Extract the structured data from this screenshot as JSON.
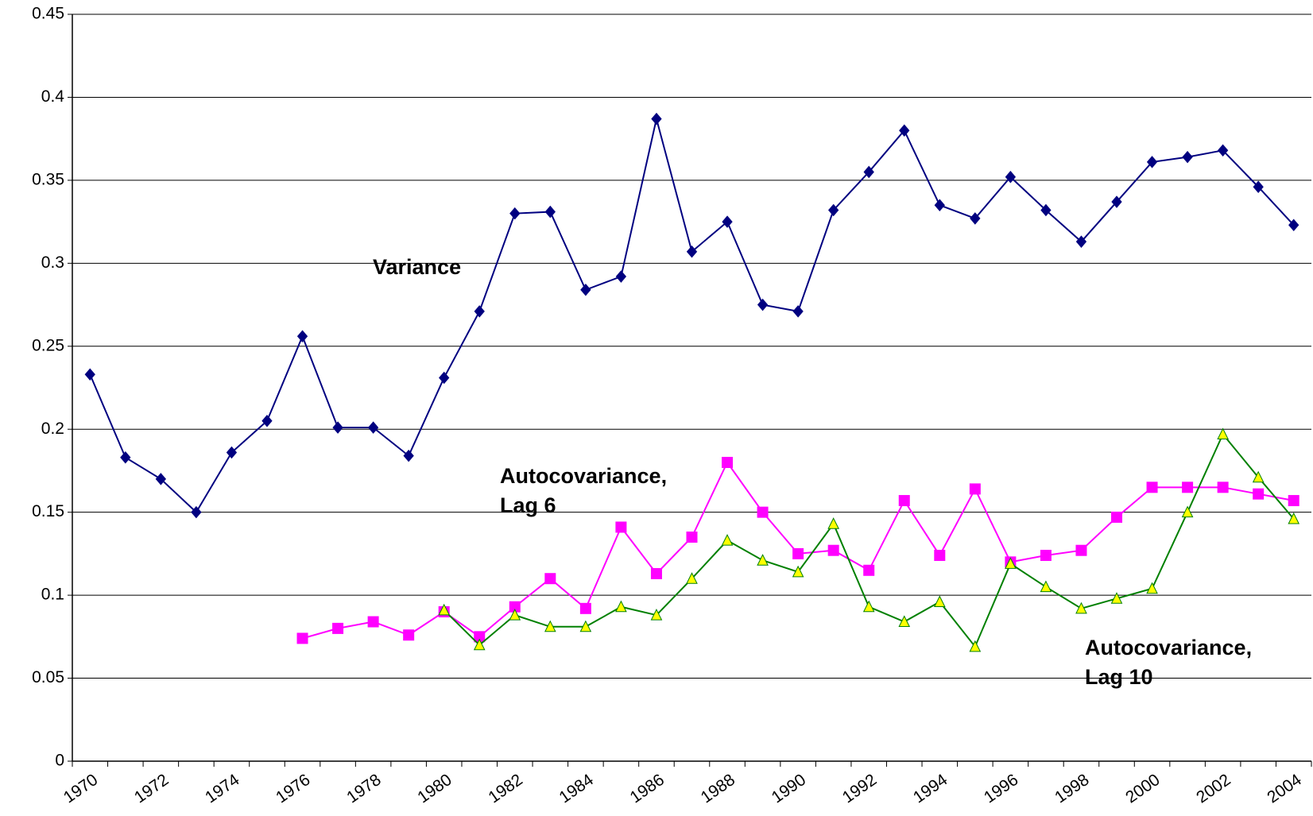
{
  "chart_data": {
    "type": "line",
    "categories": [
      "1970",
      null,
      "1972",
      null,
      "1974",
      null,
      "1976",
      null,
      "1978",
      null,
      "1980",
      null,
      "1982",
      null,
      "1984",
      null,
      "1986",
      null,
      "1988",
      null,
      "1990",
      null,
      "1992",
      null,
      "1994",
      null,
      "1996",
      null,
      "1998",
      null,
      "2000",
      null,
      "2002",
      null,
      "2004"
    ],
    "series": [
      {
        "name": "Variance",
        "color": "#000080",
        "marker": "diamond",
        "marker_color": "#000080",
        "values": [
          0.233,
          0.183,
          0.17,
          0.15,
          0.186,
          0.205,
          0.256,
          0.201,
          0.201,
          0.184,
          0.231,
          0.271,
          0.33,
          0.331,
          0.284,
          0.292,
          0.387,
          0.307,
          0.325,
          0.275,
          0.271,
          0.332,
          0.355,
          0.38,
          0.335,
          0.327,
          0.352,
          0.332,
          0.313,
          0.337,
          0.361,
          0.364,
          0.368,
          0.346,
          0.323
        ]
      },
      {
        "name": "Autocovariance, Lag 6",
        "color": "#ff00ff",
        "marker": "square",
        "marker_color": "#ff00ff",
        "values": [
          null,
          null,
          null,
          null,
          null,
          null,
          0.074,
          0.08,
          0.084,
          0.076,
          0.09,
          0.075,
          0.093,
          0.11,
          0.092,
          0.141,
          0.113,
          0.135,
          0.18,
          0.15,
          0.125,
          0.127,
          0.115,
          0.157,
          0.124,
          0.164,
          0.12,
          0.124,
          0.127,
          0.147,
          0.165,
          0.165,
          0.165,
          0.161,
          0.157
        ]
      },
      {
        "name": "Autocovariance, Lag 10",
        "color": "#008000",
        "marker": "triangle",
        "marker_color": "#ffff00",
        "values": [
          null,
          null,
          null,
          null,
          null,
          null,
          null,
          null,
          null,
          null,
          0.091,
          0.07,
          0.088,
          0.081,
          0.081,
          0.093,
          0.088,
          0.11,
          0.133,
          0.121,
          0.114,
          0.143,
          0.093,
          0.084,
          0.096,
          0.069,
          0.119,
          0.105,
          0.092,
          0.098,
          0.104,
          0.15,
          0.197,
          0.171,
          0.146
        ]
      }
    ],
    "annotations": [
      [
        "Variance"
      ],
      [
        "Autocovariance,",
        "Lag 6"
      ],
      [
        "Autocovariance,",
        "Lag 10"
      ]
    ],
    "ylim": [
      0,
      0.45
    ],
    "yticks": [
      0,
      0.05,
      0.1,
      0.15,
      0.2,
      0.25,
      0.3,
      0.35,
      0.4,
      0.45
    ],
    "grid": true
  }
}
